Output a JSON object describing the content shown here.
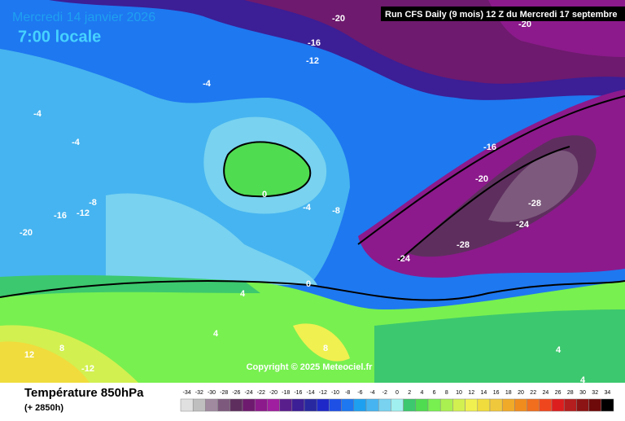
{
  "header": {
    "title": "Mercredi 14 janvier 2026",
    "time": "7:00 locale",
    "run": "Run CFS Daily (9 mois) 12 Z du Mercredi 17 septembre"
  },
  "map": {
    "contour_labels": [
      "-20",
      "-16",
      "-12",
      "-4",
      "-4",
      "-4",
      "-8",
      "-16",
      "-12",
      "-20",
      "0",
      "-4",
      "-8",
      "-16",
      "-20",
      "-28",
      "-24",
      "-28",
      "-24",
      "0",
      "4",
      "4",
      "8",
      "12",
      "-12",
      "8",
      "4",
      "4",
      "-20"
    ]
  },
  "copyright": "Copyright © 2025 Meteociel.fr",
  "legend": {
    "title": "Température 850hPa",
    "subtitle": "(+ 2850h)",
    "scale": [
      -34,
      -32,
      -30,
      -28,
      -26,
      -24,
      -22,
      -20,
      -18,
      -16,
      -14,
      -12,
      -10,
      -8,
      -6,
      -4,
      -2,
      0,
      2,
      4,
      6,
      8,
      10,
      12,
      14,
      16,
      18,
      20,
      22,
      24,
      26,
      28,
      30,
      32,
      34
    ],
    "colors": [
      "#e0e0e0",
      "#bfbfbf",
      "#a08aa0",
      "#7d5a7d",
      "#5e2f5e",
      "#6e1a6e",
      "#8c1a8c",
      "#a01ea0",
      "#5a1e8c",
      "#3c1e96",
      "#2828a0",
      "#1e28c8",
      "#1e50e6",
      "#1e78f0",
      "#1ea0f0",
      "#46b4f0",
      "#78d2f0",
      "#a0f0f0",
      "#3cc86e",
      "#50dc50",
      "#78f050",
      "#aaf050",
      "#d2f050",
      "#f0f050",
      "#f0dc3c",
      "#f0c83c",
      "#f0aa28",
      "#f08c1e",
      "#f06e1e",
      "#f0461e",
      "#dc1e1e",
      "#b41e1e",
      "#8c1414",
      "#6e0a0a",
      "#000000"
    ]
  }
}
